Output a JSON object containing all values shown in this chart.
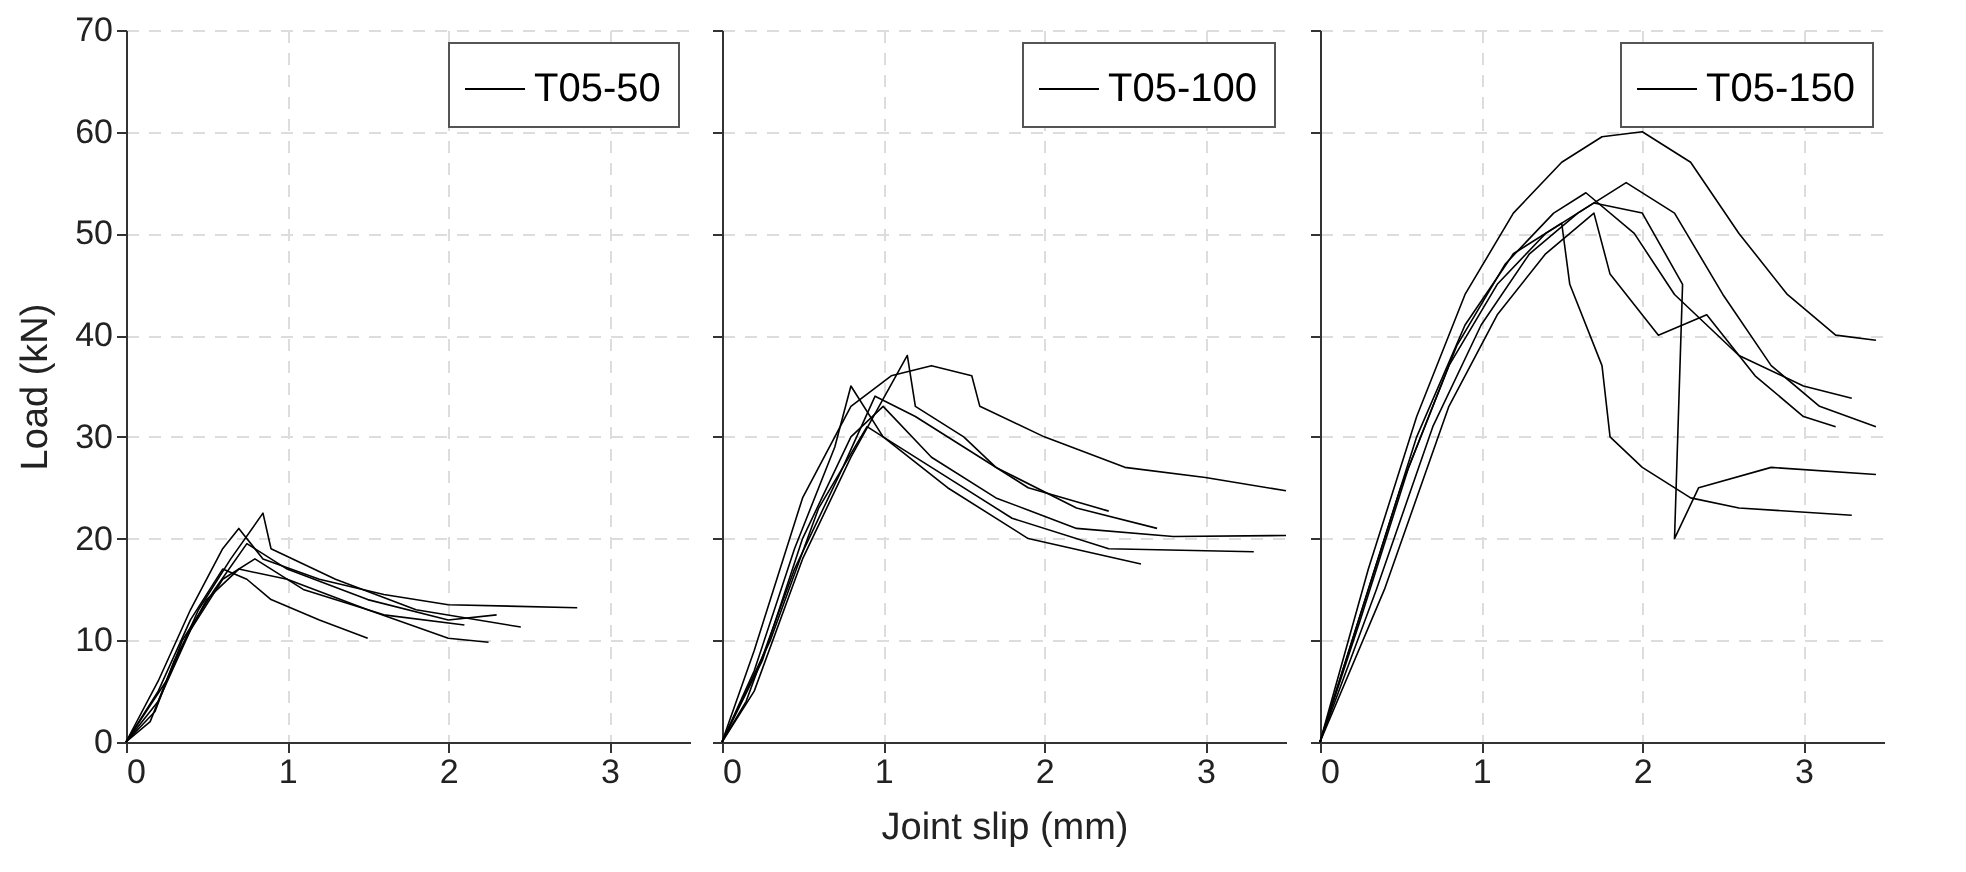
{
  "chart_data": [
    {
      "type": "line",
      "ylabel": "Load (kN)",
      "xlim": [
        0,
        3.5
      ],
      "xticks": [
        0,
        1,
        2,
        3
      ],
      "ylim": [
        0,
        70
      ],
      "yticks": [
        0,
        10,
        20,
        30,
        40,
        50,
        60,
        70
      ],
      "grid": true,
      "legend": "top right",
      "series": [
        {
          "name": "T05-50",
          "color": "#000000",
          "x": [
            0,
            0.2,
            0.4,
            0.6,
            0.7,
            0.85,
            1.2,
            1.6,
            2.0,
            2.8
          ],
          "values": [
            0,
            6,
            13,
            19,
            21,
            18,
            16,
            14.5,
            13.5,
            13.2
          ]
        },
        {
          "color": "#000000",
          "x": [
            0,
            0.25,
            0.45,
            0.65,
            0.85,
            0.9,
            1.3,
            1.8,
            2.45
          ],
          "values": [
            0,
            6,
            13,
            18,
            22.5,
            19,
            16,
            13,
            11.3
          ]
        },
        {
          "color": "#000000",
          "x": [
            0,
            0.15,
            0.3,
            0.5,
            0.7,
            1.0,
            1.5,
            2.0,
            2.25
          ],
          "values": [
            0,
            2,
            8,
            14,
            17,
            16,
            13,
            10.2,
            9.8
          ]
        },
        {
          "color": "#000000",
          "x": [
            0,
            0.2,
            0.4,
            0.6,
            0.75,
            0.9,
            1.2,
            1.5
          ],
          "values": [
            0,
            5,
            12,
            17,
            16,
            14,
            12,
            10.2
          ]
        },
        {
          "color": "#000000",
          "x": [
            0,
            0.18,
            0.35,
            0.55,
            0.75,
            1.0,
            1.5,
            2.0,
            2.3
          ],
          "values": [
            0,
            3,
            10,
            15,
            19.5,
            17,
            14,
            12,
            12.5
          ]
        },
        {
          "color": "#000000",
          "x": [
            0,
            0.2,
            0.4,
            0.6,
            0.8,
            1.1,
            1.6,
            2.1
          ],
          "values": [
            0,
            4,
            11,
            16,
            18,
            15,
            12.5,
            11.5
          ]
        }
      ]
    },
    {
      "type": "line",
      "xlabel": "Joint slip (mm)",
      "xlim": [
        0,
        3.5
      ],
      "xticks": [
        0,
        1,
        2,
        3
      ],
      "ylim": [
        0,
        70
      ],
      "yticks": [
        0,
        10,
        20,
        30,
        40,
        50,
        60,
        70
      ],
      "grid": true,
      "legend": "top right",
      "tick_labels": "x",
      "series": [
        {
          "name": "T05-100",
          "color": "#000000",
          "x": [
            0,
            0.2,
            0.5,
            0.8,
            1.05,
            1.3,
            1.55,
            1.6,
            2.0,
            2.5,
            3.0,
            3.5
          ],
          "values": [
            0,
            9,
            24,
            33,
            36,
            37,
            36,
            33,
            30,
            27,
            26,
            24.7
          ]
        },
        {
          "color": "#000000",
          "x": [
            0,
            0.25,
            0.5,
            0.8,
            1.0,
            1.3,
            1.7,
            2.2,
            2.8,
            3.5
          ],
          "values": [
            0,
            8,
            20,
            30,
            33,
            28,
            24,
            21,
            20.2,
            20.3
          ]
        },
        {
          "color": "#000000",
          "x": [
            0,
            0.2,
            0.45,
            0.7,
            0.8,
            1.0,
            1.4,
            1.9,
            2.6
          ],
          "values": [
            0,
            7,
            19,
            29,
            35,
            30,
            25,
            20,
            17.5
          ]
        },
        {
          "color": "#000000",
          "x": [
            0,
            0.2,
            0.5,
            0.8,
            1.15,
            1.2,
            1.5,
            1.7,
            2.2,
            2.7
          ],
          "values": [
            0,
            5,
            18,
            28,
            38,
            33,
            30,
            27,
            23,
            21
          ]
        },
        {
          "color": "#000000",
          "x": [
            0,
            0.3,
            0.6,
            0.9,
            1.0,
            1.3,
            1.8,
            2.4,
            3.3
          ],
          "values": [
            0,
            10,
            23,
            31,
            30,
            27,
            22,
            19,
            18.7
          ]
        },
        {
          "color": "#000000",
          "x": [
            0,
            0.15,
            0.45,
            0.75,
            0.95,
            1.2,
            1.5,
            1.9,
            2.4
          ],
          "values": [
            0,
            4,
            17,
            27,
            34,
            32,
            29,
            25,
            22.7
          ]
        }
      ]
    },
    {
      "type": "line",
      "xlim": [
        0,
        3.5
      ],
      "xticks": [
        0,
        1,
        2,
        3
      ],
      "ylim": [
        0,
        70
      ],
      "yticks": [
        0,
        10,
        20,
        30,
        40,
        50,
        60,
        70
      ],
      "grid": true,
      "legend": "top right",
      "tick_labels": "x",
      "series": [
        {
          "name": "T05-150",
          "color": "#000000",
          "x": [
            0,
            0.3,
            0.6,
            0.9,
            1.2,
            1.5,
            1.75,
            2.0,
            2.3,
            2.6,
            2.9,
            3.2,
            3.45
          ],
          "values": [
            0,
            17,
            32,
            44,
            52,
            57,
            59.5,
            60,
            57,
            50,
            44,
            40,
            39.5
          ]
        },
        {
          "color": "#000000",
          "x": [
            0,
            0.3,
            0.6,
            0.9,
            1.2,
            1.5,
            1.55,
            1.75,
            1.8,
            2.0,
            2.3,
            2.6,
            3.3
          ],
          "values": [
            0,
            15,
            30,
            41,
            48,
            51,
            45,
            37,
            30,
            27,
            24,
            23,
            22.3
          ]
        },
        {
          "color": "#000000",
          "x": [
            0,
            0.2,
            0.5,
            0.8,
            1.1,
            1.4,
            1.7,
            2.0,
            2.25,
            2.2,
            2.35,
            2.8,
            3.45
          ],
          "values": [
            0,
            10,
            25,
            37,
            45,
            50,
            53,
            52,
            45,
            20,
            25,
            27,
            26.3
          ]
        },
        {
          "color": "#000000",
          "x": [
            0,
            0.35,
            0.7,
            1.0,
            1.3,
            1.6,
            1.9,
            2.2,
            2.5,
            2.8,
            3.1,
            3.45
          ],
          "values": [
            0,
            15,
            31,
            41,
            48,
            52,
            55,
            52,
            44,
            37,
            33,
            31
          ]
        },
        {
          "color": "#000000",
          "x": [
            0,
            0.25,
            0.55,
            0.85,
            1.15,
            1.45,
            1.65,
            1.95,
            2.2,
            2.6,
            3.0,
            3.3
          ],
          "values": [
            0,
            12,
            27,
            39,
            47,
            52,
            54,
            50,
            44,
            38,
            35,
            33.8
          ]
        },
        {
          "color": "#000000",
          "x": [
            0,
            0.4,
            0.8,
            1.1,
            1.4,
            1.7,
            1.8,
            2.1,
            2.4,
            2.7,
            3.0,
            3.2
          ],
          "values": [
            0,
            15,
            33,
            42,
            48,
            52,
            46,
            40,
            42,
            36,
            32,
            31
          ]
        }
      ]
    }
  ]
}
